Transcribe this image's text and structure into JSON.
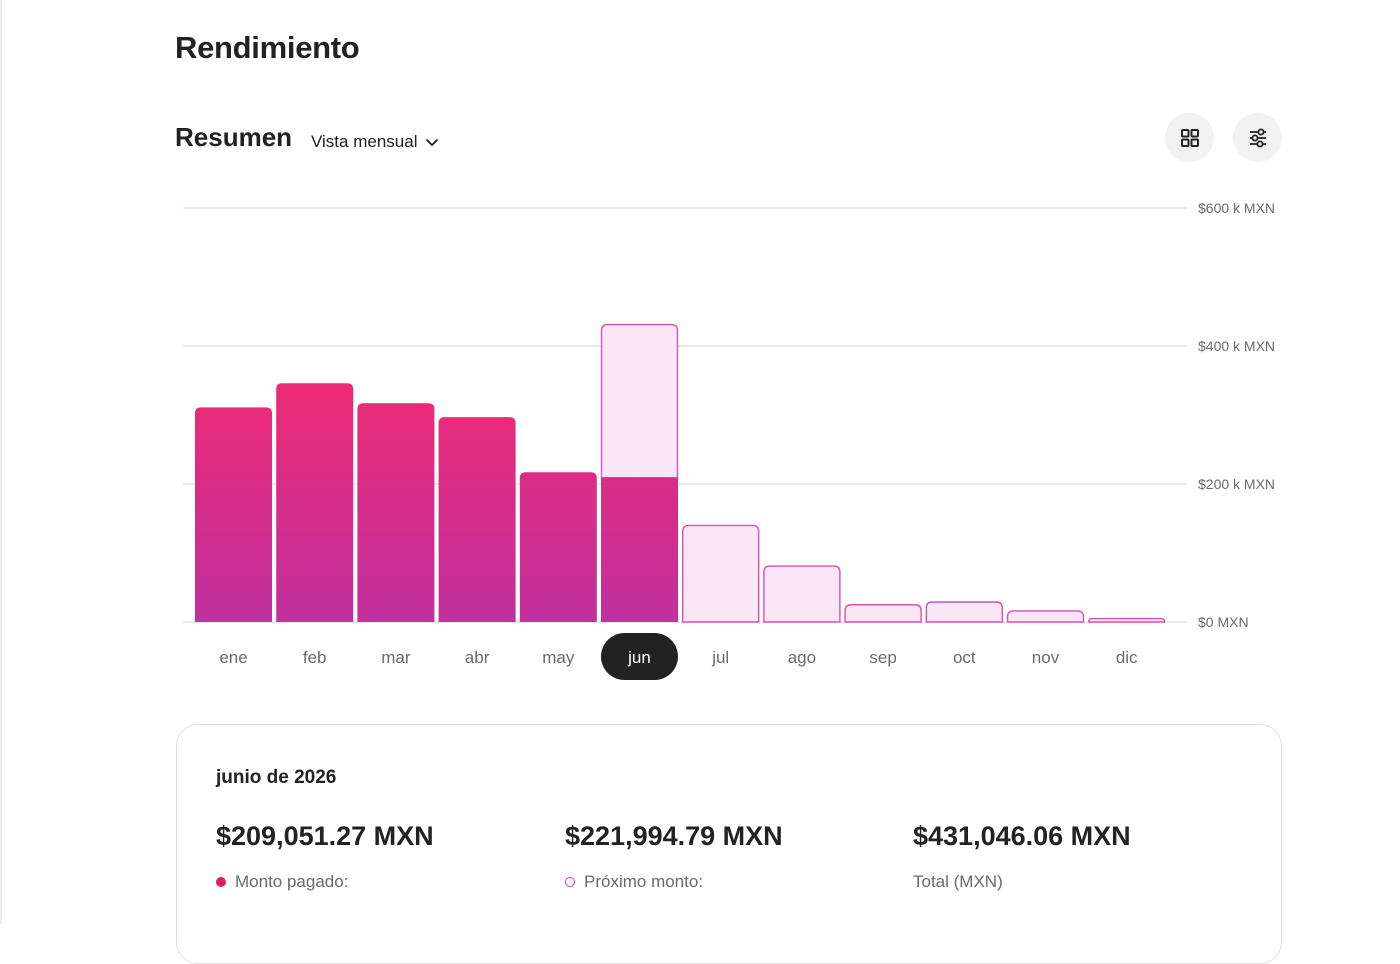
{
  "page_title": "Rendimiento",
  "summary": {
    "title": "Resumen",
    "view_selector": "Vista mensual"
  },
  "toolbar": {
    "grid_icon": "grid-icon",
    "filter_icon": "sliders-icon"
  },
  "colors": {
    "paid_top": "#ee2a72",
    "paid_bottom": "#c0309e",
    "upcoming_fill": "#fbe6f5",
    "upcoming_stroke": "#dc4fb4",
    "selected_pill": "#222222",
    "gridline": "#dddddd"
  },
  "chart_data": {
    "type": "bar",
    "stacked": true,
    "categories": [
      "ene",
      "feb",
      "mar",
      "abr",
      "may",
      "jun",
      "jul",
      "ago",
      "sep",
      "oct",
      "nov",
      "dic"
    ],
    "series": [
      {
        "name": "Monto pagado",
        "values": [
          311,
          346,
          317,
          297,
          217,
          209.05,
          0,
          0,
          0,
          0,
          0,
          0
        ]
      },
      {
        "name": "Próximo monto",
        "values": [
          0,
          0,
          0,
          0,
          0,
          221.99,
          140,
          81,
          25,
          29,
          16,
          5
        ]
      }
    ],
    "units": "k MXN",
    "y_ticks": [
      "$0 MXN",
      "$200 k MXN",
      "$400 k MXN",
      "$600 k MXN"
    ],
    "y_tick_values": [
      0,
      200,
      400,
      600
    ],
    "ylim": [
      0,
      600
    ],
    "grid": true,
    "y_axis_side": "right",
    "selected_category": "jun"
  },
  "card": {
    "period": "junio de 2026",
    "paid": {
      "value": "$209,051.27 MXN",
      "label": "Monto pagado:"
    },
    "upcoming": {
      "value": "$221,994.79 MXN",
      "label": "Próximo monto:"
    },
    "total": {
      "value": "$431,046.06 MXN",
      "label": "Total (MXN)"
    }
  }
}
